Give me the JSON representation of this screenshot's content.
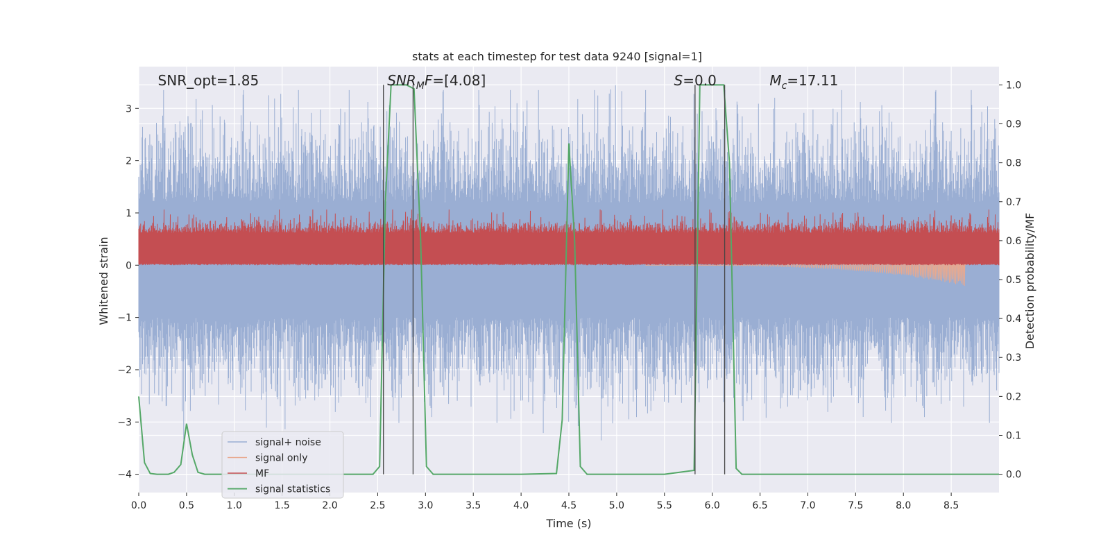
{
  "chart_data": {
    "type": "line",
    "title": "stats at each timestep for test data 9240 [signal=1]",
    "xlabel": "Time (s)",
    "ylabel": "Whitened strain",
    "y2label": "Detection probability/MF",
    "xlim": [
      0.0,
      9.0
    ],
    "ylim": [
      -4.35,
      3.8
    ],
    "y2lim": [
      -0.047,
      1.047
    ],
    "xticks": [
      0.0,
      0.5,
      1.0,
      1.5,
      2.0,
      2.5,
      3.0,
      3.5,
      4.0,
      4.5,
      5.0,
      5.5,
      6.0,
      6.5,
      7.0,
      7.5,
      8.0,
      8.5
    ],
    "xtick_labels": [
      "0.0",
      "0.5",
      "1.0",
      "1.5",
      "2.0",
      "2.5",
      "3.0",
      "3.5",
      "4.0",
      "4.5",
      "5.0",
      "5.5",
      "6.0",
      "6.5",
      "7.0",
      "7.5",
      "8.0",
      "8.5"
    ],
    "yticks": [
      -4,
      -3,
      -2,
      -1,
      0,
      1,
      2,
      3
    ],
    "ytick_labels": [
      "−4",
      "−3",
      "−2",
      "−1",
      "0",
      "1",
      "2",
      "3"
    ],
    "y2ticks": [
      0.0,
      0.1,
      0.2,
      0.3,
      0.4,
      0.5,
      0.6,
      0.7,
      0.8,
      0.9,
      1.0
    ],
    "y2tick_labels": [
      "0.0",
      "0.1",
      "0.2",
      "0.3",
      "0.4",
      "0.5",
      "0.6",
      "0.7",
      "0.8",
      "0.9",
      "1.0"
    ],
    "grid": true,
    "legend_position": "bottom-left",
    "annotations": [
      {
        "id": "snr-opt",
        "x": 0.2,
        "parts": [
          {
            "t": "SNR_opt=1.85",
            "i": false
          }
        ]
      },
      {
        "id": "snr-mf",
        "x": 2.6,
        "parts": [
          {
            "t": "SNR",
            "i": true
          },
          {
            "t": "M",
            "i": true,
            "sub": true
          },
          {
            "t": "F",
            "i": true
          },
          {
            "t": "=[4.08]",
            "i": false
          }
        ]
      },
      {
        "id": "s-stat",
        "x": 5.6,
        "parts": [
          {
            "t": "S",
            "i": true
          },
          {
            "t": "=0.0",
            "i": false
          }
        ]
      },
      {
        "id": "chirp-mass",
        "x": 6.6,
        "parts": [
          {
            "t": "M",
            "i": true
          },
          {
            "t": "c",
            "i": true,
            "sub": true
          },
          {
            "t": "=17.11",
            "i": false
          }
        ]
      }
    ],
    "vlines": [
      2.56,
      2.87,
      5.82,
      6.13
    ],
    "vline_range": [
      -4.0,
      3.45
    ],
    "series": [
      {
        "name": "signal+ noise",
        "axis": "left",
        "color": "#9aaed3",
        "kind": "noise-band",
        "t_range": [
          0.0,
          9.0
        ],
        "samples": 1800,
        "core_band": [
          -1.0,
          1.2
        ],
        "peak_range": [
          -3.35,
          3.35
        ]
      },
      {
        "name": "signal only",
        "axis": "left",
        "color": "#e8a98f",
        "kind": "chirp",
        "t_range": [
          5.3,
          8.65
        ],
        "peak_amplitude": 0.4
      },
      {
        "name": "MF",
        "axis": "right",
        "color": "#c44e52",
        "kind": "noise-band",
        "t_range": [
          0.0,
          9.0
        ],
        "samples": 1800,
        "base": 0.537,
        "core_band": [
          0.54,
          0.62
        ],
        "peak_max": 0.68
      },
      {
        "name": "signal statistics",
        "axis": "right",
        "color": "#55a868",
        "kind": "line",
        "x": [
          0.0,
          0.06,
          0.12,
          0.19,
          0.25,
          0.31,
          0.37,
          0.44,
          0.5,
          0.56,
          0.62,
          0.69,
          0.75,
          0.81,
          1.0,
          1.5,
          2.0,
          2.45,
          2.52,
          2.58,
          2.64,
          2.7,
          2.8,
          2.88,
          2.95,
          3.01,
          3.08,
          3.5,
          4.0,
          4.37,
          4.43,
          4.5,
          4.56,
          4.62,
          4.69,
          5.0,
          5.5,
          5.81,
          5.87,
          5.94,
          6.0,
          6.12,
          6.18,
          6.25,
          6.31,
          7.0,
          8.0,
          9.0
        ],
        "y": [
          0.2,
          0.03,
          0.002,
          0.0,
          0.0,
          0.0,
          0.005,
          0.025,
          0.13,
          0.05,
          0.005,
          0.0,
          0.0,
          0.0,
          0.0,
          0.0,
          0.0,
          0.0,
          0.02,
          0.7,
          1.0,
          1.0,
          1.0,
          0.99,
          0.6,
          0.02,
          0.0,
          0.0,
          0.0,
          0.002,
          0.14,
          0.85,
          0.6,
          0.02,
          0.0,
          0.0,
          0.0,
          0.01,
          1.0,
          1.0,
          1.0,
          1.0,
          0.8,
          0.015,
          0.0,
          0.0,
          0.0,
          0.0
        ]
      }
    ]
  }
}
